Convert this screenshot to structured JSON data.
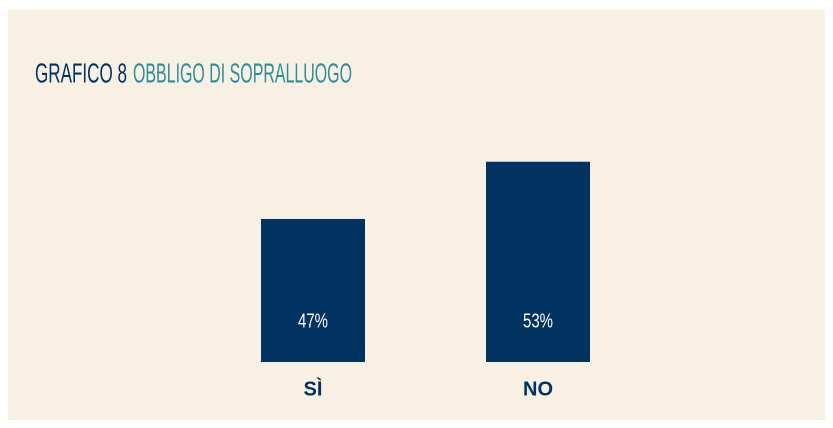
{
  "chart_data": {
    "type": "bar",
    "title": "GRAFICO 8",
    "subtitle": "OBBLIGO DI SOPRALLUOGO",
    "categories": [
      "SÌ",
      "NO"
    ],
    "values": [
      47,
      53
    ],
    "value_labels": [
      "47%",
      "53%"
    ],
    "color": "#003361",
    "ylim": [
      32,
      60
    ]
  }
}
